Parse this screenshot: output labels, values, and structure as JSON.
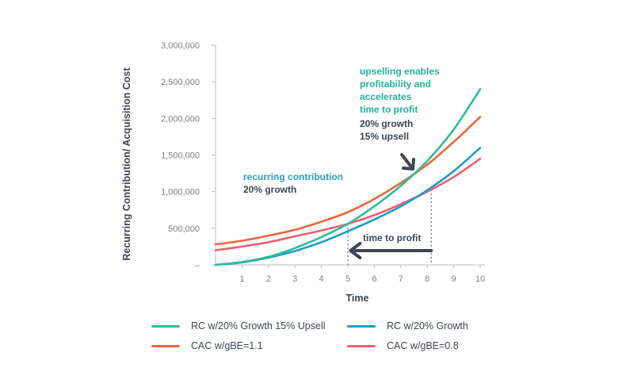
{
  "chart_data": {
    "type": "line",
    "title": "",
    "xlabel": "Time",
    "ylabel": "Recurring Contribution/ Acquisition Cost",
    "xlim": [
      0,
      10
    ],
    "ylim": [
      0,
      3000000
    ],
    "x_ticks": [
      "1",
      "2",
      "3",
      "4",
      "5",
      "6",
      "7",
      "8",
      "9",
      "10"
    ],
    "y_ticks": [
      "–",
      "500,000",
      "1,000,000",
      "1,500,000",
      "2,000,000",
      "2,500,000",
      "3,000,000"
    ],
    "x": [
      0,
      1,
      2,
      3,
      4,
      5,
      6,
      7,
      8,
      9,
      10
    ],
    "series": [
      {
        "name": "RC w/20% Growth 15% Upsell",
        "color": "#2dbd9b",
        "values": [
          0,
          40000,
          110000,
          230000,
          380000,
          560000,
          800000,
          1080000,
          1420000,
          1850000,
          2400000
        ]
      },
      {
        "name": "RC w/20% Growth",
        "color": "#1f9cc6",
        "values": [
          0,
          35000,
          100000,
          190000,
          310000,
          460000,
          620000,
          800000,
          1020000,
          1280000,
          1600000
        ]
      },
      {
        "name": "CAC w/gBE=1.1",
        "color": "#e9673e",
        "values": [
          280000,
          330000,
          400000,
          480000,
          590000,
          720000,
          900000,
          1120000,
          1370000,
          1680000,
          2020000
        ]
      },
      {
        "name": "CAC w/gBE=0.8",
        "color": "#ee5d72",
        "values": [
          200000,
          250000,
          310000,
          390000,
          470000,
          560000,
          680000,
          830000,
          1000000,
          1200000,
          1450000
        ]
      }
    ],
    "legend_placement": "bottom",
    "grid": false,
    "annotations": {
      "upsell_title": [
        "upselling enables",
        "profitability and",
        "accelerates",
        "time to profit"
      ],
      "upsell_detail": [
        "20% growth",
        "15% upsell"
      ],
      "recurring_title": "recurring contribution",
      "recurring_detail": "20% growth",
      "time_to_profit": "time to profit"
    }
  }
}
